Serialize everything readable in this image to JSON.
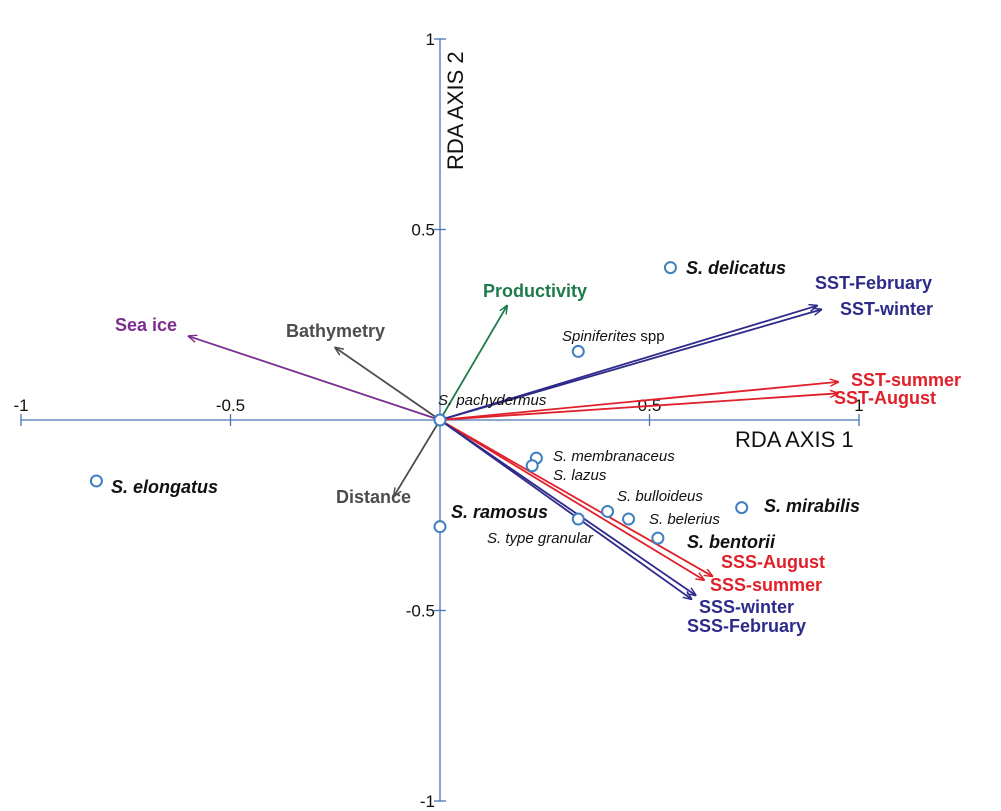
{
  "chart_data": {
    "type": "scatter",
    "subtype": "rda-biplot",
    "xlabel": "RDA AXIS 1",
    "ylabel": "RDA AXIS 2",
    "xlim": [
      -1,
      1
    ],
    "ylim": [
      -1,
      1
    ],
    "x_ticks": [
      {
        "value": -1,
        "label": "-1"
      },
      {
        "value": -0.5,
        "label": "-0.5"
      },
      {
        "value": 0.5,
        "label": "0.5"
      },
      {
        "value": 1,
        "label": "1"
      }
    ],
    "y_ticks": [
      {
        "value": 1,
        "label": "1"
      },
      {
        "value": 0.5,
        "label": "0.5"
      },
      {
        "value": -0.5,
        "label": "-0.5"
      },
      {
        "value": -1,
        "label": "-1"
      }
    ],
    "grid": false,
    "colors": {
      "axis": "#4a73b8",
      "points": "#3f7fc0",
      "sst_sss_blue": "#2e2a8a",
      "sst_sss_red": "#e0202a",
      "sea_ice": "#7b2d8e",
      "productivity": "#1e7a4a",
      "grey": "#4d4d4d"
    },
    "species": [
      {
        "name": "S. delicatus",
        "x": 0.55,
        "y": 0.4,
        "style": "major"
      },
      {
        "name": "Spiniferites",
        "suffix": " spp",
        "x": 0.33,
        "y": 0.18,
        "style": "minor"
      },
      {
        "name": "S. pachydermus",
        "x": 0.0,
        "y": 0.0,
        "style": "minor"
      },
      {
        "name": "S. membranaceus",
        "x": 0.23,
        "y": -0.1,
        "style": "minor"
      },
      {
        "name": "S. lazus",
        "x": 0.22,
        "y": -0.12,
        "style": "minor"
      },
      {
        "name": "S. elongatus",
        "x": -0.82,
        "y": -0.16,
        "style": "major"
      },
      {
        "name": "S. bulloideus",
        "x": 0.4,
        "y": -0.24,
        "style": "minor"
      },
      {
        "name": "S. belerius",
        "x": 0.45,
        "y": -0.26,
        "style": "minor"
      },
      {
        "name": "S. mirabilis",
        "x": 0.72,
        "y": -0.23,
        "style": "major"
      },
      {
        "name": "S. ramosus",
        "x": 0.0,
        "y": -0.28,
        "style": "major"
      },
      {
        "name": "S. type granular",
        "x": 0.33,
        "y": -0.26,
        "style": "minor"
      },
      {
        "name": "S. bentorii",
        "x": 0.52,
        "y": -0.31,
        "style": "major"
      }
    ],
    "vectors": [
      {
        "name": "Sea ice",
        "x": -0.6,
        "y": 0.22,
        "color": "#7b2d8e"
      },
      {
        "name": "Bathymetry",
        "x": -0.25,
        "y": 0.19,
        "color": "#4d4d4d"
      },
      {
        "name": "Productivity",
        "x": 0.16,
        "y": 0.3,
        "color": "#1e7a4a"
      },
      {
        "name": "Distance",
        "x": -0.11,
        "y": -0.2,
        "color": "#4d4d4d"
      },
      {
        "name": "SST-February",
        "x": 0.9,
        "y": 0.3,
        "color": "#2e2a8a"
      },
      {
        "name": "SST-winter",
        "x": 0.91,
        "y": 0.29,
        "color": "#2e2a8a"
      },
      {
        "name": "SST-summer",
        "x": 0.95,
        "y": 0.1,
        "color": "#e0202a"
      },
      {
        "name": "SST-August",
        "x": 0.95,
        "y": 0.07,
        "color": "#e0202a"
      },
      {
        "name": "SSS-August",
        "x": 0.65,
        "y": -0.41,
        "color": "#e0202a"
      },
      {
        "name": "SSS-summer",
        "x": 0.63,
        "y": -0.42,
        "color": "#e0202a"
      },
      {
        "name": "SSS-winter",
        "x": 0.61,
        "y": -0.46,
        "color": "#2e2a8a"
      },
      {
        "name": "SSS-February",
        "x": 0.6,
        "y": -0.47,
        "color": "#2e2a8a"
      }
    ]
  }
}
